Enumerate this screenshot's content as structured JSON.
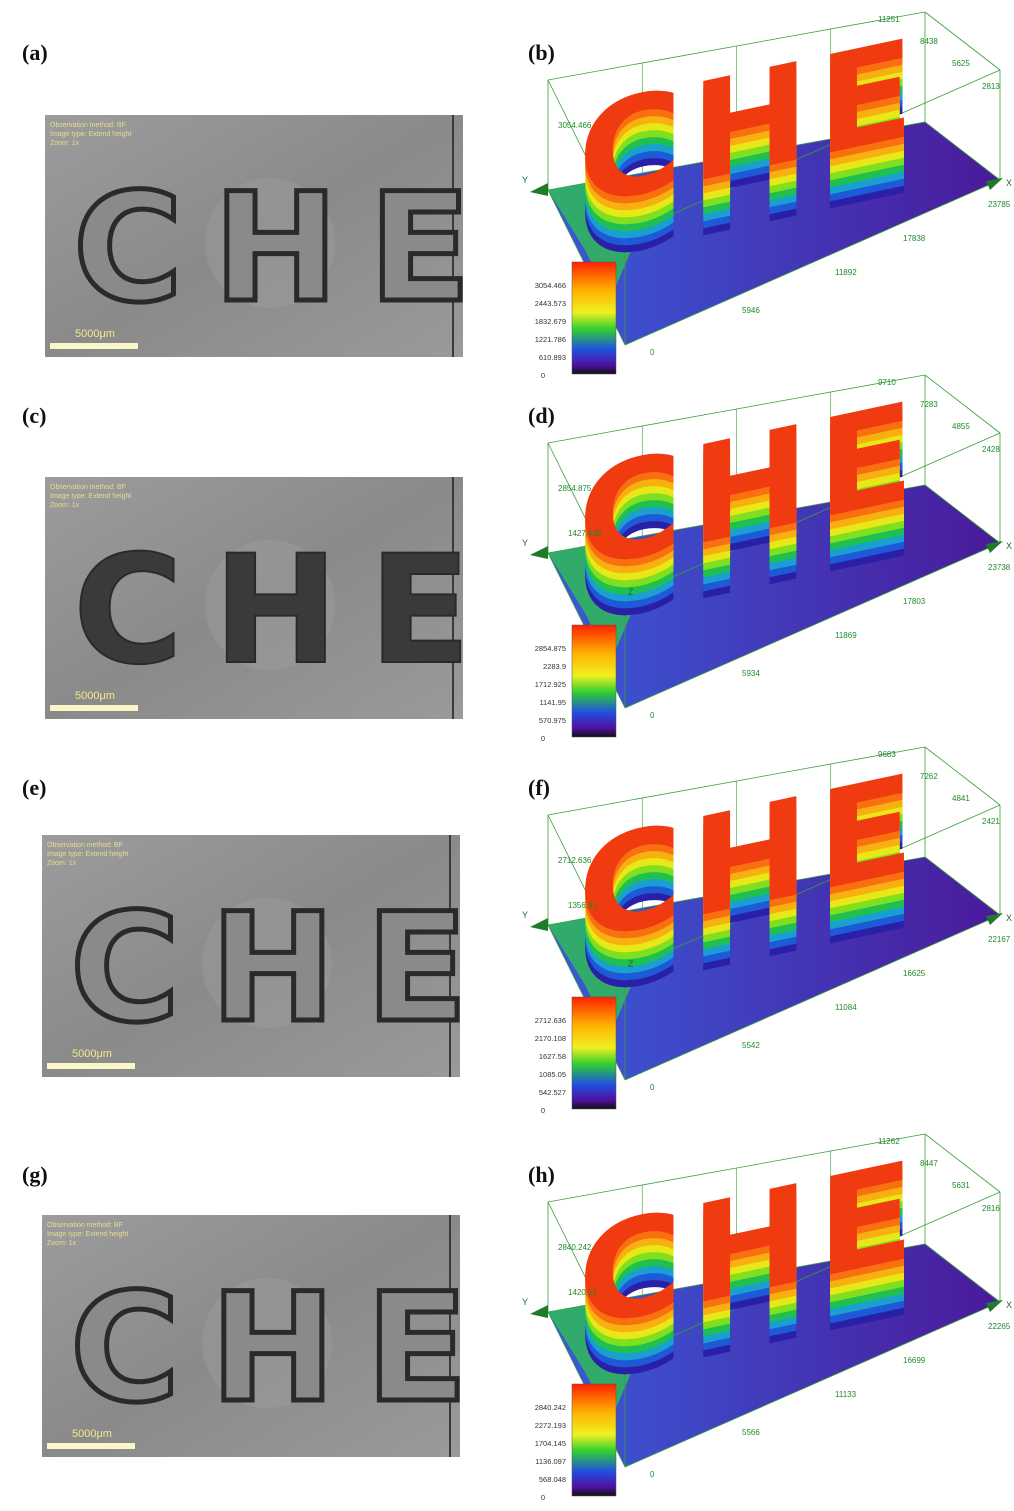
{
  "rows": [
    {
      "left": {
        "label": "(a)",
        "letters": "CHE",
        "scale_bar": "5000μm",
        "metadata": [
          "Observation method: BF",
          "Image type: Extend height",
          "Zoom: 1x"
        ]
      },
      "right": {
        "label": "(b)",
        "letters": "CHE",
        "axis_x": "X",
        "axis_y": "Y",
        "y_ticks": [
          "11251",
          "8438",
          "5625",
          "2813"
        ],
        "x_ticks": [
          "23785",
          "17838",
          "11892",
          "5946",
          "0"
        ],
        "z_labels": [
          "3054.466"
        ],
        "colorbar": [
          "3054.466",
          "2443.573",
          "1832.679",
          "1221.786",
          "610.893",
          "0"
        ]
      }
    },
    {
      "left": {
        "label": "(c)",
        "letters": "CHE",
        "scale_bar": "5000μm",
        "metadata": [
          "Observation method: BF",
          "Image type: Extend height",
          "Zoom: 1x"
        ]
      },
      "right": {
        "label": "(d)",
        "letters": "CHE",
        "axis_x": "X",
        "axis_y": "Y",
        "axis_z": "Z",
        "y_ticks": [
          "9710",
          "7283",
          "4855",
          "2428"
        ],
        "x_ticks": [
          "23738",
          "17803",
          "11869",
          "5934",
          "0"
        ],
        "z_labels": [
          "2854.875",
          "1427.438"
        ],
        "colorbar": [
          "2854.875",
          "2283.9",
          "1712.925",
          "1141.95",
          "570.975",
          "0"
        ]
      }
    },
    {
      "left": {
        "label": "(e)",
        "letters": "CHE",
        "scale_bar": "5000μm",
        "metadata": [
          "Observation method: BF",
          "Image type: Extend height",
          "Zoom: 1x"
        ]
      },
      "right": {
        "label": "(f)",
        "letters": "CHE",
        "axis_x": "X",
        "axis_y": "Y",
        "axis_z": "Z",
        "y_ticks": [
          "9683",
          "7262",
          "4841",
          "2421"
        ],
        "x_ticks": [
          "22167",
          "16625",
          "11084",
          "5542",
          "0"
        ],
        "z_labels": [
          "2712.636",
          "1356.31"
        ],
        "colorbar": [
          "2712.636",
          "2170.108",
          "1627.58",
          "1085.05",
          "542.527",
          "0"
        ]
      }
    },
    {
      "left": {
        "label": "(g)",
        "letters": "CHE",
        "scale_bar": "5000μm",
        "metadata": [
          "Observation method: BF",
          "Image type: Extend height",
          "Zoom: 1x"
        ]
      },
      "right": {
        "label": "(h)",
        "letters": "CHE",
        "axis_x": "X",
        "axis_y": "Y",
        "y_ticks": [
          "11262",
          "8447",
          "5631",
          "2816"
        ],
        "x_ticks": [
          "22265",
          "16699",
          "11133",
          "5566",
          "0"
        ],
        "z_labels": [
          "2840.242",
          "1420.12"
        ],
        "colorbar": [
          "2840.242",
          "2272.193",
          "1704.145",
          "1136.097",
          "568.048",
          "0"
        ]
      }
    }
  ]
}
